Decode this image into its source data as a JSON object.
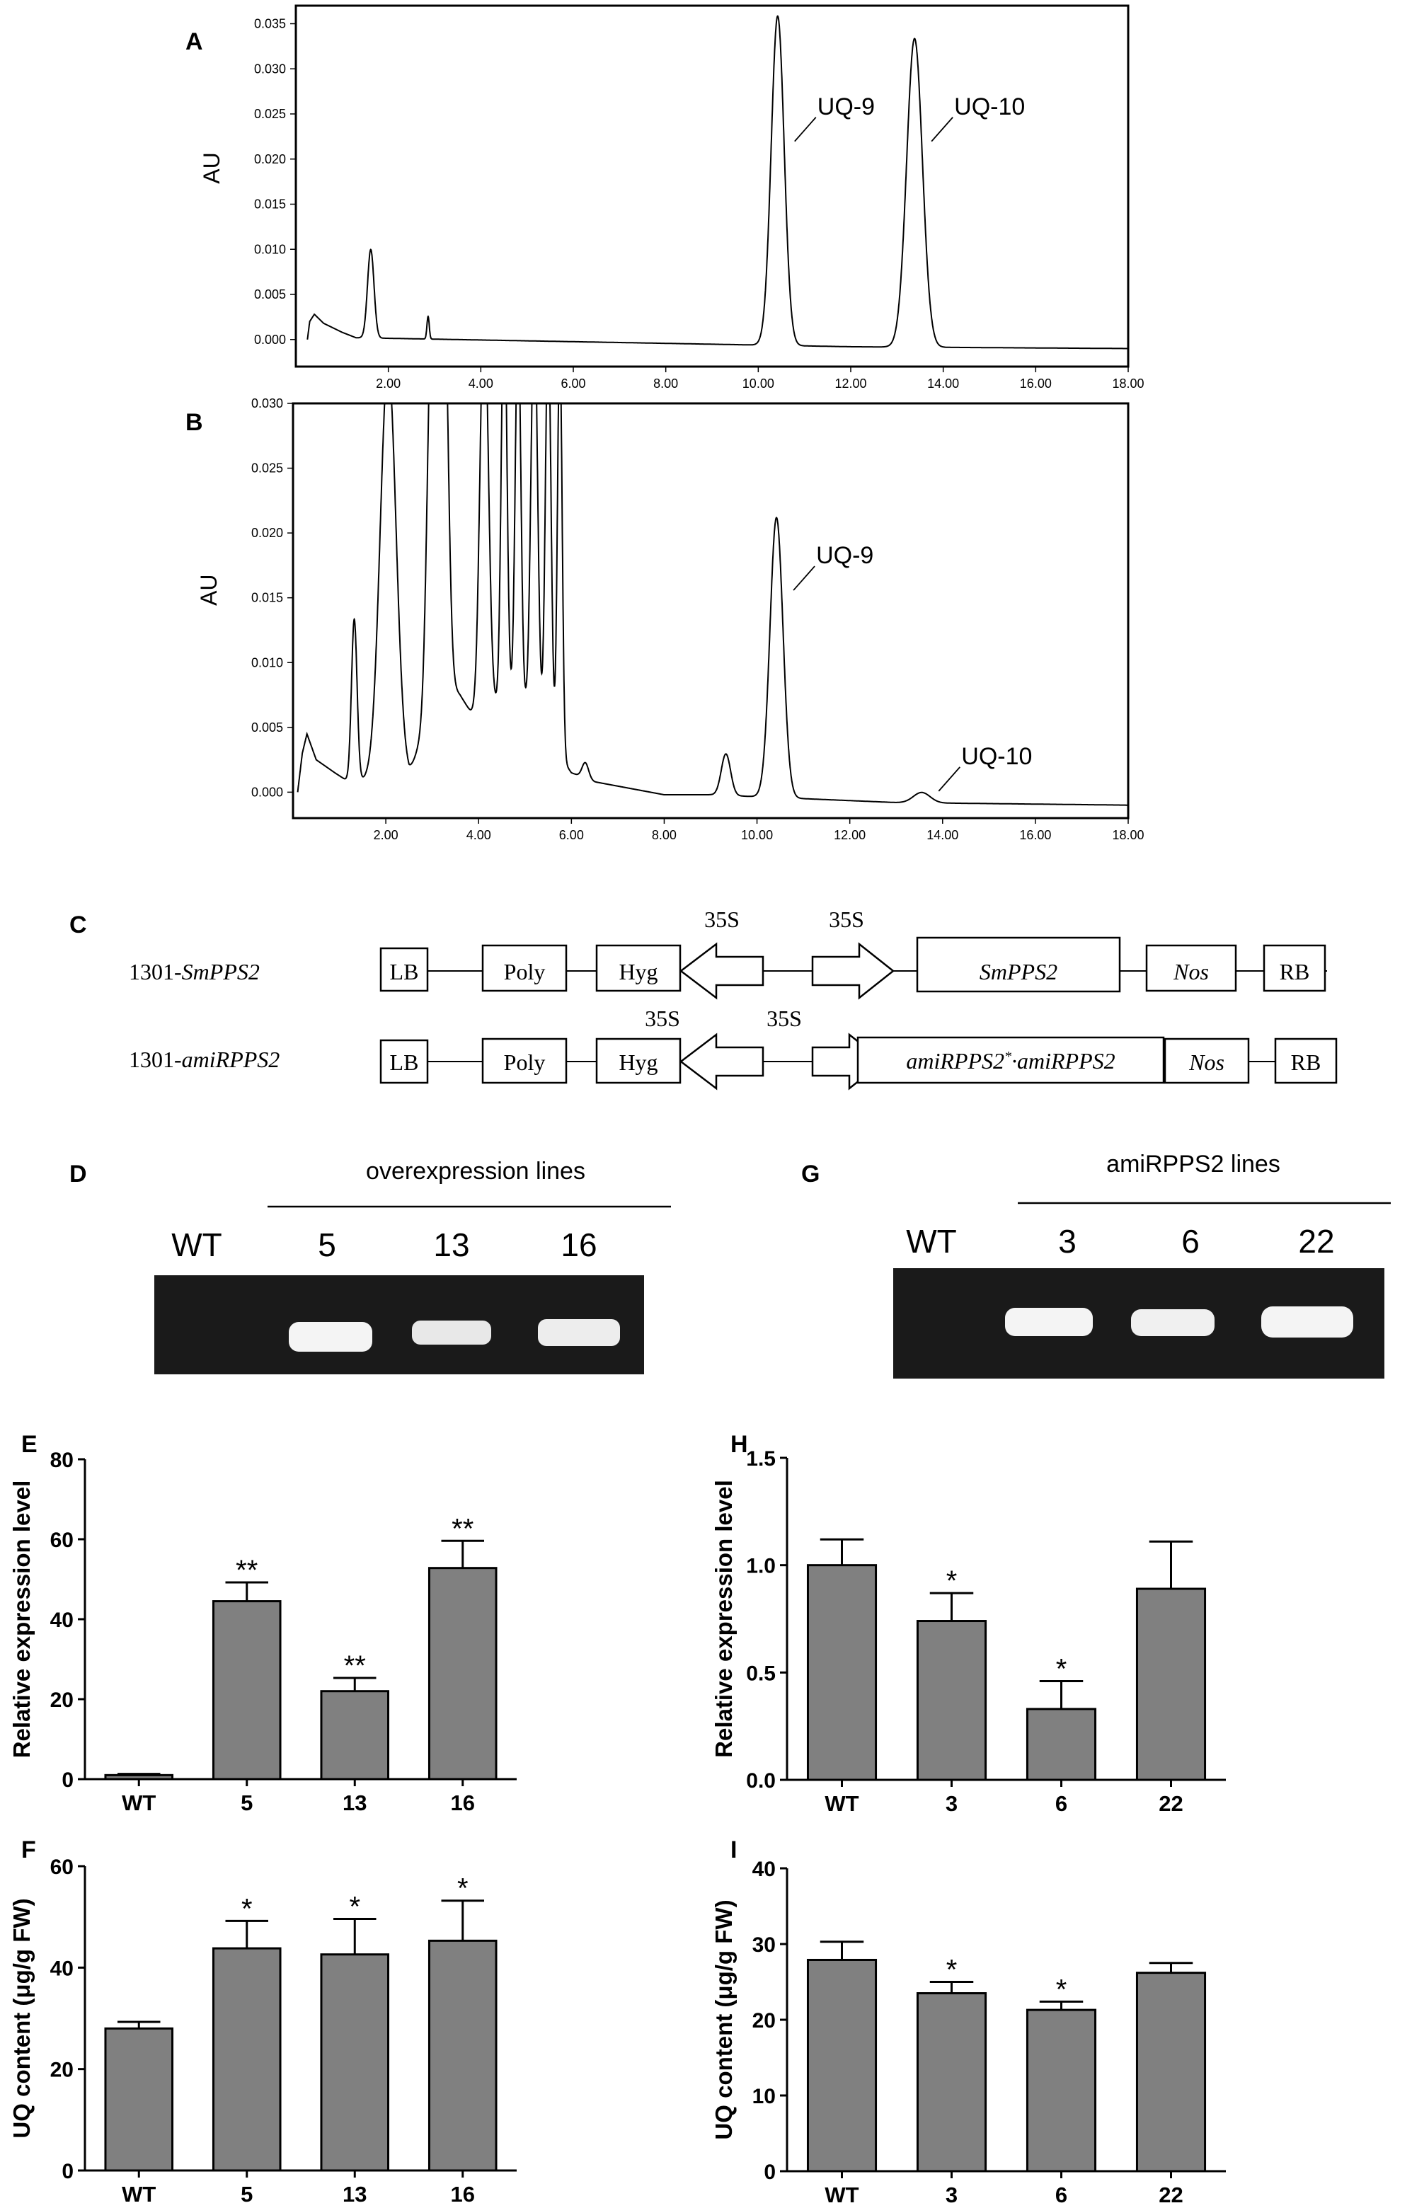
{
  "panels": {
    "A": "A",
    "B": "B",
    "C": "C",
    "D": "D",
    "E": "E",
    "F": "F",
    "G": "G",
    "H": "H",
    "I": "I"
  },
  "construct": {
    "row1_label_prefix": "1301-",
    "row1_label_italic": "SmPPS2",
    "row2_label_prefix": "1301-",
    "row2_label_italic": "amiRPPS2",
    "lb": "LB",
    "poly": "Poly",
    "hyg": "Hyg",
    "p35s": "35S",
    "gene1": "SmPPS2",
    "gene2a": "amiRPPS2",
    "gene2star": "*",
    "gene2b": "·amiRPPS2",
    "nos": "Nos",
    "rb": "RB"
  },
  "gel_D": {
    "group_label": "overexpression lines",
    "lanes": [
      "WT",
      "5",
      "13",
      "16"
    ]
  },
  "gel_G": {
    "group_label": "amiRPPS2 lines",
    "lanes": [
      "WT",
      "3",
      "6",
      "22"
    ]
  },
  "colors": {
    "bar": "#808080",
    "gel_bg": "#1a1a1a",
    "band": "#f4f4f4"
  },
  "chart_data": [
    {
      "panel": "A",
      "type": "line",
      "xlabel": "",
      "ylabel": "AU",
      "xlim": [
        0,
        18
      ],
      "ylim": [
        -0.003,
        0.037
      ],
      "xticks": [
        "2.00",
        "4.00",
        "6.00",
        "8.00",
        "10.00",
        "12.00",
        "14.00",
        "16.00",
        "18.00"
      ],
      "yticks": [
        "0.000",
        "0.005",
        "0.010",
        "0.015",
        "0.020",
        "0.025",
        "0.030",
        "0.035"
      ],
      "baseline": [
        [
          0.25,
          0.0
        ],
        [
          0.3,
          0.002
        ],
        [
          0.4,
          0.0028
        ],
        [
          0.6,
          0.0018
        ],
        [
          1.0,
          0.0008
        ],
        [
          1.3,
          0.0002
        ],
        [
          12,
          -0.0008
        ],
        [
          18,
          -0.001
        ]
      ],
      "peaks": [
        {
          "x": 1.62,
          "y": 0.0098,
          "w": 0.07
        },
        {
          "x": 2.86,
          "y": 0.0025,
          "w": 0.025
        },
        {
          "x": 10.42,
          "y": 0.0365,
          "w": 0.14
        },
        {
          "x": 13.38,
          "y": 0.0342,
          "w": 0.17
        }
      ],
      "annotations": [
        {
          "text": "UQ-9",
          "x": 10.42,
          "y": 0.024
        },
        {
          "text": "UQ-10",
          "x": 13.38,
          "y": 0.024
        }
      ]
    },
    {
      "panel": "B",
      "type": "line",
      "xlabel": "",
      "ylabel": "AU",
      "xlim": [
        0,
        18
      ],
      "ylim": [
        -0.002,
        0.03
      ],
      "xticks": [
        "2.00",
        "4.00",
        "6.00",
        "8.00",
        "10.00",
        "12.00",
        "14.00",
        "16.00",
        "18.00"
      ],
      "yticks": [
        "0.000",
        "0.005",
        "0.010",
        "0.015",
        "0.020",
        "0.025",
        "0.030"
      ],
      "baseline": [
        [
          0.1,
          0.0
        ],
        [
          0.2,
          0.003
        ],
        [
          0.3,
          0.0045
        ],
        [
          0.5,
          0.0025
        ],
        [
          0.9,
          0.0015
        ],
        [
          1.2,
          0.0008
        ],
        [
          2.5,
          0.0012
        ],
        [
          3.2,
          0.009
        ],
        [
          3.6,
          0.0075
        ],
        [
          3.95,
          0.0055
        ],
        [
          4.5,
          0.007
        ],
        [
          5.0,
          0.0065
        ],
        [
          5.5,
          0.004
        ],
        [
          6.0,
          0.0015
        ],
        [
          6.5,
          0.0008
        ],
        [
          8,
          -0.0002
        ],
        [
          9,
          -0.0002
        ],
        [
          11,
          -0.0005
        ],
        [
          13,
          -0.0008
        ],
        [
          18,
          -0.001
        ]
      ],
      "peaks": [
        {
          "x": 1.32,
          "y": 0.0125,
          "w": 0.06
        },
        {
          "x": 2.05,
          "y": 0.032,
          "w": 0.17
        },
        {
          "x": 3.0,
          "y": 0.032,
          "w": 0.1
        },
        {
          "x": 3.25,
          "y": 0.032,
          "w": 0.09
        },
        {
          "x": 4.12,
          "y": 0.032,
          "w": 0.09
        },
        {
          "x": 4.55,
          "y": 0.032,
          "w": 0.06
        },
        {
          "x": 4.85,
          "y": 0.03,
          "w": 0.06
        },
        {
          "x": 5.2,
          "y": 0.032,
          "w": 0.07
        },
        {
          "x": 5.5,
          "y": 0.032,
          "w": 0.06
        },
        {
          "x": 5.75,
          "y": 0.032,
          "w": 0.05
        },
        {
          "x": 6.3,
          "y": 0.0012,
          "w": 0.07
        },
        {
          "x": 9.33,
          "y": 0.0032,
          "w": 0.1
        },
        {
          "x": 10.42,
          "y": 0.0216,
          "w": 0.14
        },
        {
          "x": 13.55,
          "y": 0.0008,
          "w": 0.18
        }
      ],
      "annotations": [
        {
          "text": "UQ-9",
          "x": 10.42,
          "y": 0.017
        },
        {
          "text": "UQ-10",
          "x": 13.55,
          "y": 0.0015
        }
      ]
    },
    {
      "panel": "E",
      "type": "bar",
      "ylabel": "Relative expression level",
      "ylim": [
        0,
        80
      ],
      "yticks": [
        "0",
        "20",
        "40",
        "60",
        "80"
      ],
      "categories": [
        "WT",
        "5",
        "13",
        "16"
      ],
      "values": [
        1,
        44.5,
        22,
        52.8
      ],
      "errors": [
        0.3,
        4.7,
        3.3,
        6.8
      ],
      "sig": [
        "",
        "**",
        "**",
        "**"
      ]
    },
    {
      "panel": "F",
      "type": "bar",
      "ylabel": "UQ content (μg/g FW)",
      "ylim": [
        0,
        60
      ],
      "yticks": [
        "0",
        "20",
        "40",
        "60"
      ],
      "categories": [
        "WT",
        "5",
        "13",
        "16"
      ],
      "values": [
        28,
        43.8,
        42.6,
        45.3
      ],
      "errors": [
        1.3,
        5.4,
        7,
        7.9
      ],
      "sig": [
        "",
        "*",
        "*",
        "*"
      ]
    },
    {
      "panel": "H",
      "type": "bar",
      "ylabel": "Relative expression level",
      "ylim": [
        0,
        1.5
      ],
      "yticks": [
        "0.0",
        "0.5",
        "1.0",
        "1.5"
      ],
      "categories": [
        "WT",
        "3",
        "6",
        "22"
      ],
      "values": [
        1.0,
        0.74,
        0.33,
        0.89
      ],
      "errors": [
        0.12,
        0.13,
        0.13,
        0.22
      ],
      "sig": [
        "",
        "*",
        "*",
        ""
      ]
    },
    {
      "panel": "I",
      "type": "bar",
      "ylabel": "UQ content (μg/g FW)",
      "ylim": [
        0,
        40
      ],
      "yticks": [
        "0",
        "10",
        "20",
        "30",
        "40"
      ],
      "categories": [
        "WT",
        "3",
        "6",
        "22"
      ],
      "values": [
        27.9,
        23.5,
        21.3,
        26.2
      ],
      "errors": [
        2.4,
        1.5,
        1.1,
        1.3
      ],
      "sig": [
        "",
        "*",
        "*",
        ""
      ]
    }
  ]
}
